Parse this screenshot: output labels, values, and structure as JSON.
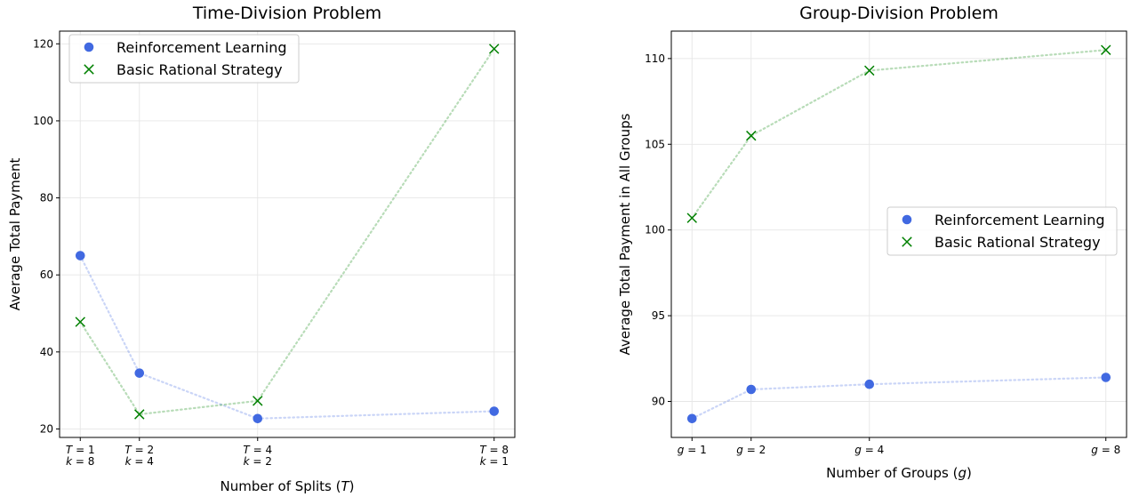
{
  "chart_data": [
    {
      "type": "scatter",
      "title": "Time-Division Problem",
      "xlabel": "Number of Splits (",
      "xlabel_var": "T",
      "xlabel_suffix": ")",
      "ylabel": "Average Total Payment",
      "x": [
        1,
        2,
        4,
        8
      ],
      "xtick_labels": [
        {
          "var": "T",
          "value": "1",
          "var2": "k",
          "value2": "8"
        },
        {
          "var": "T",
          "value": "2",
          "var2": "k",
          "value2": "4"
        },
        {
          "var": "T",
          "value": "4",
          "var2": "k",
          "value2": "2"
        },
        {
          "var": "T",
          "value": "8",
          "var2": "k",
          "value2": "1"
        }
      ],
      "yticks": [
        20,
        40,
        60,
        80,
        100,
        120
      ],
      "ylim": [
        17.8,
        123.3
      ],
      "xlim": [
        0.65,
        8.35
      ],
      "grid": true,
      "legend_position": "top-left",
      "series": [
        {
          "name": "Reinforcement Learning",
          "marker": "circle",
          "color": "#4169e1",
          "values": [
            65.0,
            34.5,
            22.7,
            24.6
          ]
        },
        {
          "name": "Basic Rational Strategy",
          "marker": "x",
          "color": "#008000",
          "values": [
            47.8,
            23.8,
            27.3,
            118.7
          ]
        }
      ]
    },
    {
      "type": "scatter",
      "title": "Group-Division Problem",
      "xlabel": "Number of Groups (",
      "xlabel_var": "g",
      "xlabel_suffix": ")",
      "ylabel": "Average Total Payment in All Groups",
      "x": [
        1,
        2,
        4,
        8
      ],
      "xtick_labels": [
        {
          "var": "g",
          "value": "1"
        },
        {
          "var": "g",
          "value": "2"
        },
        {
          "var": "g",
          "value": "4"
        },
        {
          "var": "g",
          "value": "8"
        }
      ],
      "yticks": [
        90,
        95,
        100,
        105,
        110
      ],
      "ylim": [
        87.9,
        111.6
      ],
      "xlim": [
        0.65,
        8.35
      ],
      "grid": true,
      "legend_position": "center-right",
      "series": [
        {
          "name": "Reinforcement Learning",
          "marker": "circle",
          "color": "#4169e1",
          "values": [
            89.0,
            90.7,
            91.0,
            91.4
          ]
        },
        {
          "name": "Basic Rational Strategy",
          "marker": "x",
          "color": "#008000",
          "values": [
            100.7,
            105.5,
            109.3,
            110.5
          ]
        }
      ]
    }
  ]
}
